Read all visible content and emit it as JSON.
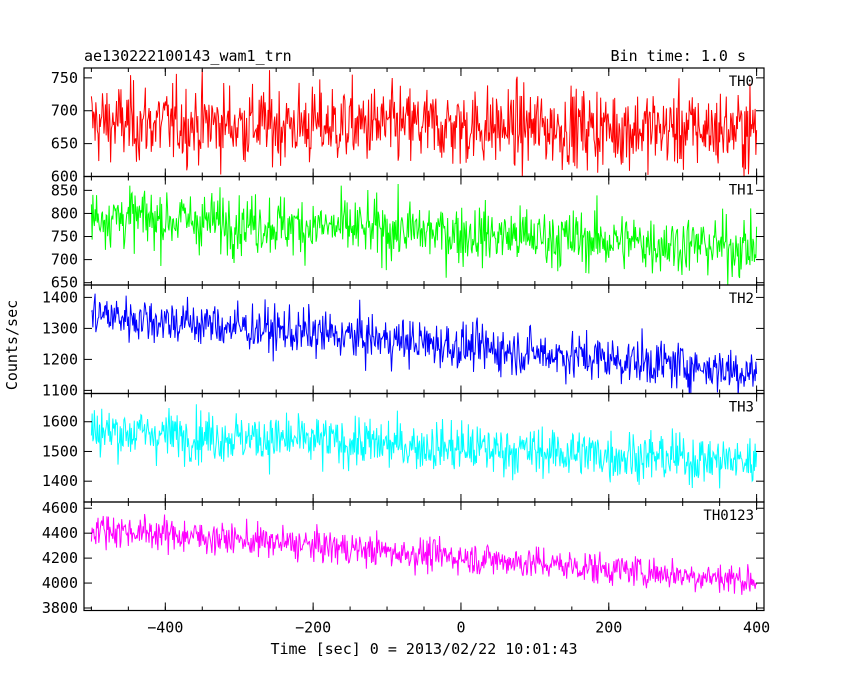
{
  "chart_data": {
    "type": "line",
    "title": "ae130222100143_wam1_trn",
    "bin_time_label": "Bin time: 1.0 s",
    "xlabel": "Time [sec] 0 = 2013/02/22 10:01:43",
    "ylabel": "Counts/sec",
    "xlim": [
      -510,
      410
    ],
    "x_ticks": [
      -400,
      -200,
      0,
      200,
      400
    ],
    "x_tick_labels": [
      "−400",
      "−200",
      "0",
      "200",
      "400"
    ],
    "bin_time": 1.0,
    "x_range_data": [
      -500,
      400
    ],
    "panels": [
      {
        "name": "TH0",
        "color": "#ff0000",
        "ylim": [
          600,
          765
        ],
        "y_ticks": [
          600,
          650,
          700,
          750
        ],
        "y_tick_labels": [
          "600",
          "650",
          "700",
          "750"
        ],
        "mean_start": 682,
        "mean_end": 671,
        "scatter": 30
      },
      {
        "name": "TH1",
        "color": "#00ff00",
        "ylim": [
          645,
          880
        ],
        "y_ticks": [
          650,
          700,
          750,
          800,
          850
        ],
        "y_tick_labels": [
          "650",
          "700",
          "750",
          "800",
          "850"
        ],
        "mean_start": 795,
        "mean_end": 725,
        "scatter": 32
      },
      {
        "name": "TH2",
        "color": "#0000ff",
        "ylim": [
          1090,
          1440
        ],
        "y_ticks": [
          1100,
          1200,
          1300,
          1400
        ],
        "y_tick_labels": [
          "1100",
          "1200",
          "1300",
          "1400"
        ],
        "mean_start": 1345,
        "mean_end": 1160,
        "scatter": 38
      },
      {
        "name": "TH3",
        "color": "#00ffff",
        "ylim": [
          1330,
          1695
        ],
        "y_ticks": [
          1400,
          1500,
          1600
        ],
        "y_tick_labels": [
          "1400",
          "1500",
          "1600"
        ],
        "mean_start": 1570,
        "mean_end": 1465,
        "scatter": 42
      },
      {
        "name": "TH0123",
        "color": "#ff00ff",
        "ylim": [
          3780,
          4650
        ],
        "y_ticks": [
          3800,
          4000,
          4200,
          4400,
          4600
        ],
        "y_tick_labels": [
          "3800",
          "4000",
          "4200",
          "4400",
          "4600"
        ],
        "mean_start": 4440,
        "mean_end": 4020,
        "scatter": 65
      }
    ]
  }
}
